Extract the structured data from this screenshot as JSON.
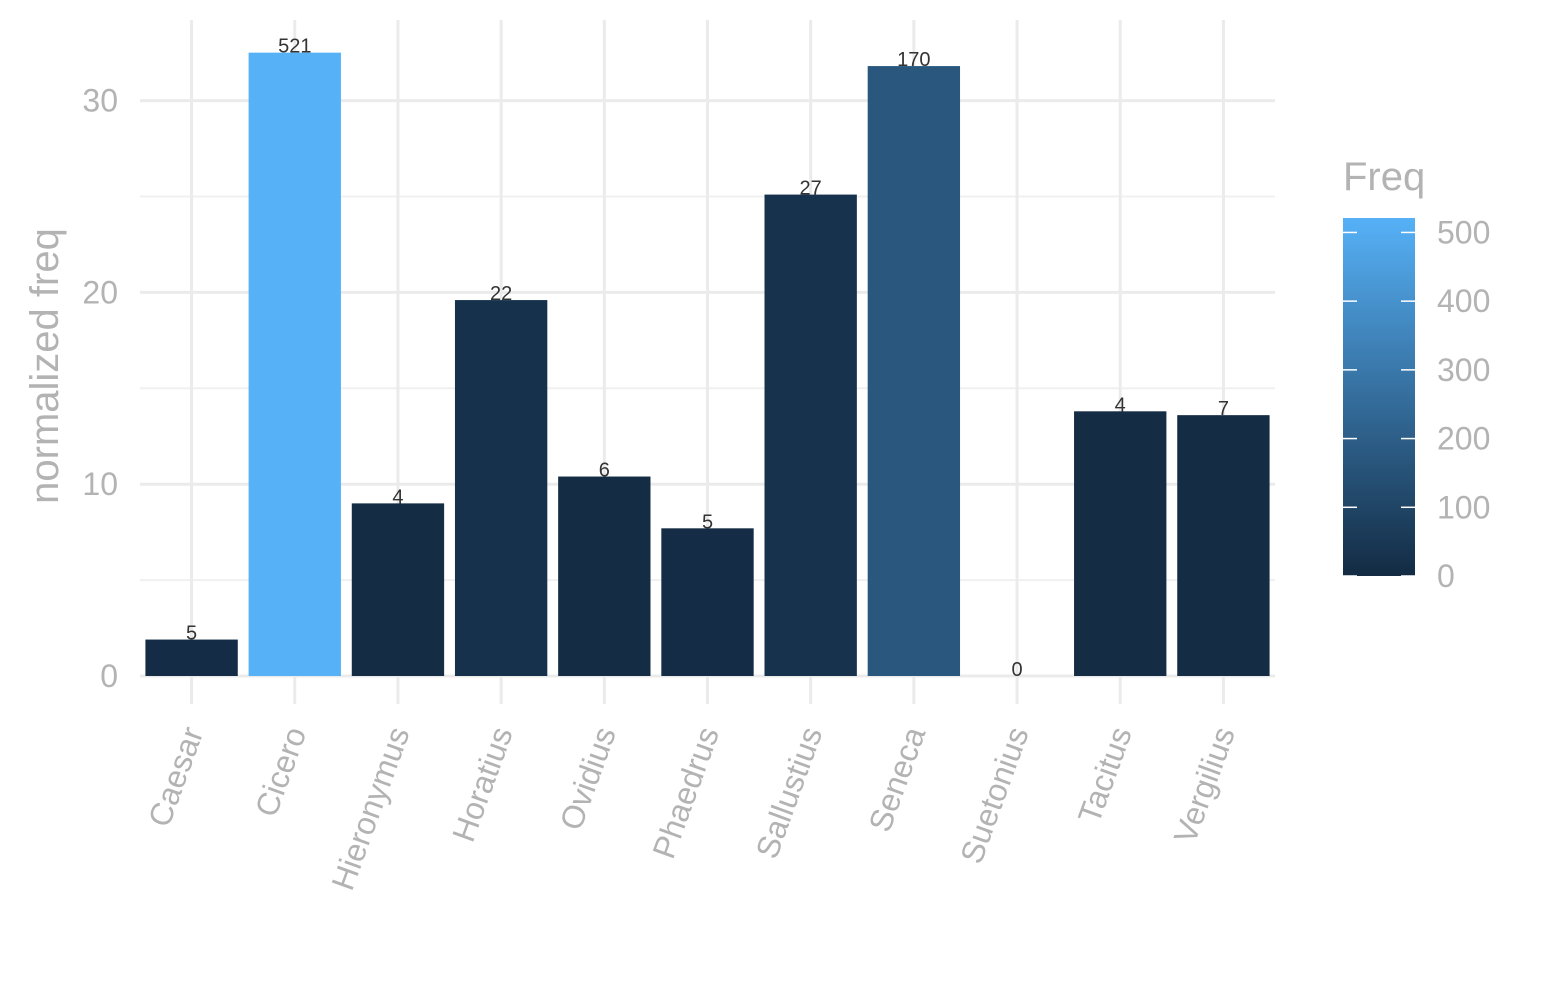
{
  "chart_data": {
    "type": "bar",
    "categories": [
      "Caesar",
      "Cicero",
      "Hieronymus",
      "Horatius",
      "Ovidius",
      "Phaedrus",
      "Sallustius",
      "Seneca",
      "Suetonius",
      "Tacitus",
      "Vergilius"
    ],
    "values": [
      1.9,
      32.5,
      9.0,
      19.6,
      10.4,
      7.7,
      25.1,
      31.8,
      0,
      13.8,
      13.6
    ],
    "freq": [
      5,
      521,
      4,
      22,
      6,
      5,
      27,
      170,
      0,
      4,
      7
    ],
    "data_labels": [
      "5",
      "521",
      "4",
      "22",
      "6",
      "5",
      "27",
      "170",
      "0",
      "4",
      "7"
    ],
    "title": "",
    "xlabel": "",
    "ylabel": "normalized freq",
    "ylim": [
      0,
      34
    ],
    "yticks": [
      0,
      10,
      20,
      30
    ],
    "grid": true,
    "legend": {
      "title": "Freq",
      "type": "colorbar",
      "position": "right",
      "range": [
        0,
        521
      ],
      "ticks": [
        0,
        100,
        200,
        300,
        400,
        500
      ],
      "low_color": "#132B43",
      "high_color": "#56B1F7"
    }
  }
}
